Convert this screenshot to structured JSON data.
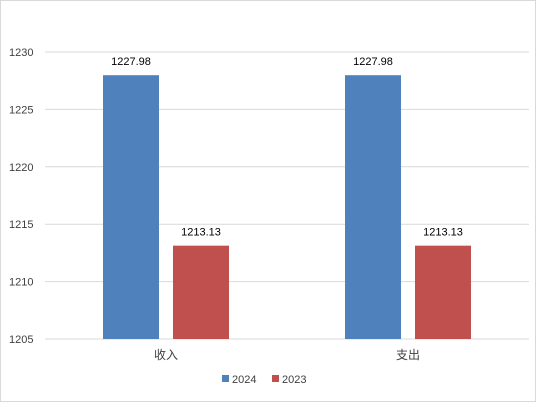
{
  "chart_data": {
    "type": "bar",
    "categories": [
      "收入",
      "支出"
    ],
    "series": [
      {
        "name": "2024",
        "values": [
          1227.98,
          1227.98
        ],
        "labels": [
          "1227.98",
          "1227.98"
        ]
      },
      {
        "name": "2023",
        "values": [
          1213.13,
          1213.13
        ],
        "labels": [
          "1213.13",
          "1213.13"
        ]
      }
    ],
    "ylim": [
      1205,
      1230
    ],
    "yticks": [
      1205,
      1210,
      1215,
      1220,
      1225,
      1230
    ],
    "grid": true,
    "legend_position": "bottom"
  },
  "colors": {
    "series": [
      "#4f81bd",
      "#c0504d"
    ],
    "grid": "#d9d9d9",
    "text": "#404040"
  }
}
